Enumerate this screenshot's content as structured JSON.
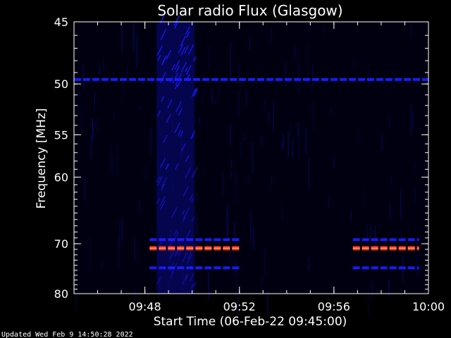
{
  "chart_data": {
    "type": "heatmap",
    "title": "Solar radio Flux (Glasgow)",
    "xlabel": "Start Time (06-Feb-22 09:45:00)",
    "ylabel": "Frequency [MHz]",
    "x_range_minutes": [
      0,
      15
    ],
    "y_range_mhz": [
      45,
      80
    ],
    "x_ticks": [
      {
        "minute": 3,
        "label": "09:48"
      },
      {
        "minute": 7,
        "label": "09:52"
      },
      {
        "minute": 11,
        "label": "09:56"
      },
      {
        "minute": 15,
        "label": "10:00"
      }
    ],
    "y_ticks": [
      {
        "mhz": 45,
        "label": "45"
      },
      {
        "mhz": 50,
        "label": "50"
      },
      {
        "mhz": 55,
        "label": "55"
      },
      {
        "mhz": 60,
        "label": "60"
      },
      {
        "mhz": 70,
        "label": "70"
      },
      {
        "mhz": 80,
        "label": "80"
      }
    ],
    "features": [
      {
        "kind": "broadband-burst",
        "t_start": 3.5,
        "t_end": 5.1,
        "f_start": 45,
        "f_end": 80,
        "intensity": "medium"
      },
      {
        "kind": "narrowband-line",
        "f": 49.6,
        "t_start": 0,
        "t_end": 15,
        "intensity": "medium",
        "dashed": true
      },
      {
        "kind": "narrowband-line",
        "f": 69.3,
        "t_start": 3.2,
        "t_end": 7.0,
        "intensity": "medium",
        "dashed": true
      },
      {
        "kind": "narrowband-line",
        "f": 70.8,
        "t_start": 3.2,
        "t_end": 7.0,
        "intensity": "high",
        "dashed": true
      },
      {
        "kind": "narrowband-line",
        "f": 74.5,
        "t_start": 3.2,
        "t_end": 7.0,
        "intensity": "medium",
        "dashed": true
      },
      {
        "kind": "narrowband-line",
        "f": 69.3,
        "t_start": 11.8,
        "t_end": 14.6,
        "intensity": "medium",
        "dashed": true
      },
      {
        "kind": "narrowband-line",
        "f": 70.8,
        "t_start": 11.8,
        "t_end": 14.6,
        "intensity": "high",
        "dashed": true
      },
      {
        "kind": "narrowband-line",
        "f": 74.5,
        "t_start": 11.8,
        "t_end": 14.6,
        "intensity": "medium",
        "dashed": true
      }
    ],
    "colors": {
      "background": "#000000",
      "plot_bg": "#000010",
      "low": "#0a0a80",
      "medium": "#1a1aff",
      "high": "#ff3010",
      "peak": "#ffb090",
      "axes": "#ffffff"
    },
    "grid": false
  },
  "footer": {
    "updated": "Updated Wed Feb  9 14:50:28 2022"
  }
}
